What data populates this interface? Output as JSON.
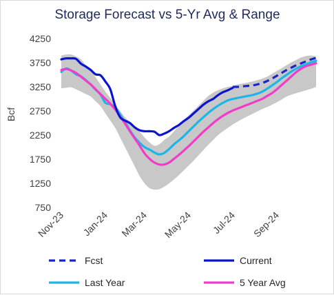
{
  "chart_data": {
    "type": "line",
    "title": "Storage Forecast vs 5-Yr Avg & Range",
    "ylabel": "Bcf",
    "xlabel": "",
    "ylim": [
      750,
      4250
    ],
    "yticks": [
      750,
      1250,
      1750,
      2250,
      2750,
      3250,
      3750,
      4250
    ],
    "xtick_labels": [
      "Nov-23",
      "Jan-24",
      "Mar-24",
      "May-24",
      "Jul-24",
      "Sep-24"
    ],
    "xtick_weeks": [
      0,
      9,
      17,
      26,
      35,
      44
    ],
    "grid": false,
    "legend_position": "bottom",
    "colors": {
      "range": "#c8c8c8",
      "current": "#0a14d0",
      "fcst": "#1a24c8",
      "last_year": "#1cb5e8",
      "five_year_avg": "#f03cc8"
    },
    "range_band": {
      "weeks": [
        0,
        1,
        2,
        3,
        4,
        5,
        6,
        7,
        8,
        9,
        10,
        11,
        12,
        13,
        14,
        15,
        16,
        17,
        18,
        19,
        20,
        21,
        22,
        23,
        24,
        25,
        26,
        27,
        28,
        29,
        30,
        31,
        32,
        33,
        34,
        35,
        36,
        37,
        38,
        39,
        40,
        41,
        42,
        43,
        44,
        45,
        46,
        47,
        48,
        49,
        50,
        51,
        52
      ],
      "high": [
        3900,
        3920,
        3920,
        3880,
        3820,
        3700,
        3600,
        3450,
        3300,
        3150,
        3020,
        2880,
        2750,
        2620,
        2520,
        2400,
        2320,
        2200,
        2100,
        2030,
        2060,
        2150,
        2220,
        2330,
        2440,
        2560,
        2660,
        2760,
        2860,
        2960,
        3060,
        3130,
        3180,
        3220,
        3250,
        3270,
        3300,
        3320,
        3340,
        3360,
        3390,
        3420,
        3460,
        3520,
        3580,
        3640,
        3700,
        3760,
        3810,
        3860,
        3890,
        3900,
        3880
      ],
      "low": [
        3220,
        3230,
        3240,
        3200,
        3150,
        3100,
        3050,
        2950,
        2850,
        2700,
        2550,
        2400,
        2200,
        2000,
        1800,
        1600,
        1400,
        1250,
        1150,
        1120,
        1130,
        1180,
        1250,
        1330,
        1420,
        1520,
        1620,
        1720,
        1830,
        1940,
        2050,
        2150,
        2250,
        2330,
        2400,
        2470,
        2530,
        2590,
        2640,
        2690,
        2740,
        2790,
        2830,
        2880,
        2930,
        2990,
        3050,
        3090,
        3120,
        3150,
        3180,
        3210,
        3250
      ]
    },
    "series": [
      {
        "name": "Fcst",
        "key": "fcst",
        "style": "dashed",
        "x": [
          35,
          36,
          37,
          38,
          39,
          40,
          41,
          42,
          43,
          44,
          45,
          46,
          47,
          48,
          49,
          50,
          51,
          52
        ],
        "values": [
          3250,
          3250,
          3260,
          3270,
          3280,
          3300,
          3330,
          3370,
          3420,
          3480,
          3540,
          3600,
          3650,
          3700,
          3740,
          3780,
          3820,
          3850
        ]
      },
      {
        "name": "Current",
        "key": "current",
        "style": "solid",
        "x": [
          0,
          1,
          2,
          3,
          4,
          5,
          6,
          7,
          8,
          9,
          10,
          11,
          12,
          13,
          14,
          15,
          16,
          17,
          18,
          19,
          20,
          21,
          22,
          23,
          24,
          25,
          26,
          27,
          28,
          29,
          30,
          31,
          32,
          33,
          34,
          35
        ],
        "values": [
          3820,
          3840,
          3840,
          3830,
          3730,
          3670,
          3600,
          3510,
          3490,
          3360,
          3200,
          2850,
          2620,
          2550,
          2500,
          2410,
          2350,
          2330,
          2330,
          2320,
          2250,
          2280,
          2330,
          2400,
          2460,
          2540,
          2610,
          2700,
          2790,
          2880,
          2950,
          3000,
          3080,
          3140,
          3180,
          3230
        ]
      },
      {
        "name": "Last Year",
        "key": "last_year",
        "style": "solid",
        "x": [
          0,
          1,
          2,
          3,
          4,
          5,
          6,
          7,
          8,
          9,
          10,
          11,
          12,
          13,
          14,
          15,
          16,
          17,
          18,
          19,
          20,
          21,
          22,
          23,
          24,
          25,
          26,
          27,
          28,
          29,
          30,
          31,
          32,
          33,
          34,
          35,
          36,
          37,
          38,
          39,
          40,
          41,
          42,
          43,
          44,
          45,
          46,
          47,
          48,
          49,
          50,
          51,
          52
        ],
        "values": [
          3560,
          3630,
          3590,
          3510,
          3470,
          3390,
          3300,
          3190,
          3090,
          2920,
          2890,
          2820,
          2680,
          2520,
          2350,
          2200,
          2090,
          2000,
          1950,
          1890,
          1850,
          1880,
          1960,
          2060,
          2140,
          2230,
          2330,
          2430,
          2530,
          2620,
          2710,
          2790,
          2860,
          2920,
          2970,
          3000,
          3020,
          3040,
          3060,
          3080,
          3110,
          3150,
          3210,
          3280,
          3350,
          3430,
          3500,
          3570,
          3630,
          3680,
          3720,
          3760,
          3790
        ]
      },
      {
        "name": "5 Year Avg",
        "key": "five_year_avg",
        "style": "solid",
        "x": [
          0,
          1,
          2,
          3,
          4,
          5,
          6,
          7,
          8,
          9,
          10,
          11,
          12,
          13,
          14,
          15,
          16,
          17,
          18,
          19,
          20,
          21,
          22,
          23,
          24,
          25,
          26,
          27,
          28,
          29,
          30,
          31,
          32,
          33,
          34,
          35,
          36,
          37,
          38,
          39,
          40,
          41,
          42,
          43,
          44,
          45,
          46,
          47,
          48,
          49,
          50,
          51,
          52
        ],
        "values": [
          3600,
          3620,
          3590,
          3540,
          3460,
          3380,
          3300,
          3200,
          3100,
          3000,
          2900,
          2780,
          2640,
          2490,
          2330,
          2180,
          2030,
          1870,
          1760,
          1680,
          1640,
          1640,
          1680,
          1760,
          1840,
          1930,
          2020,
          2120,
          2220,
          2320,
          2410,
          2500,
          2580,
          2650,
          2710,
          2760,
          2800,
          2840,
          2880,
          2920,
          2960,
          3000,
          3060,
          3120,
          3200,
          3290,
          3380,
          3470,
          3560,
          3630,
          3680,
          3710,
          3740
        ]
      }
    ]
  }
}
